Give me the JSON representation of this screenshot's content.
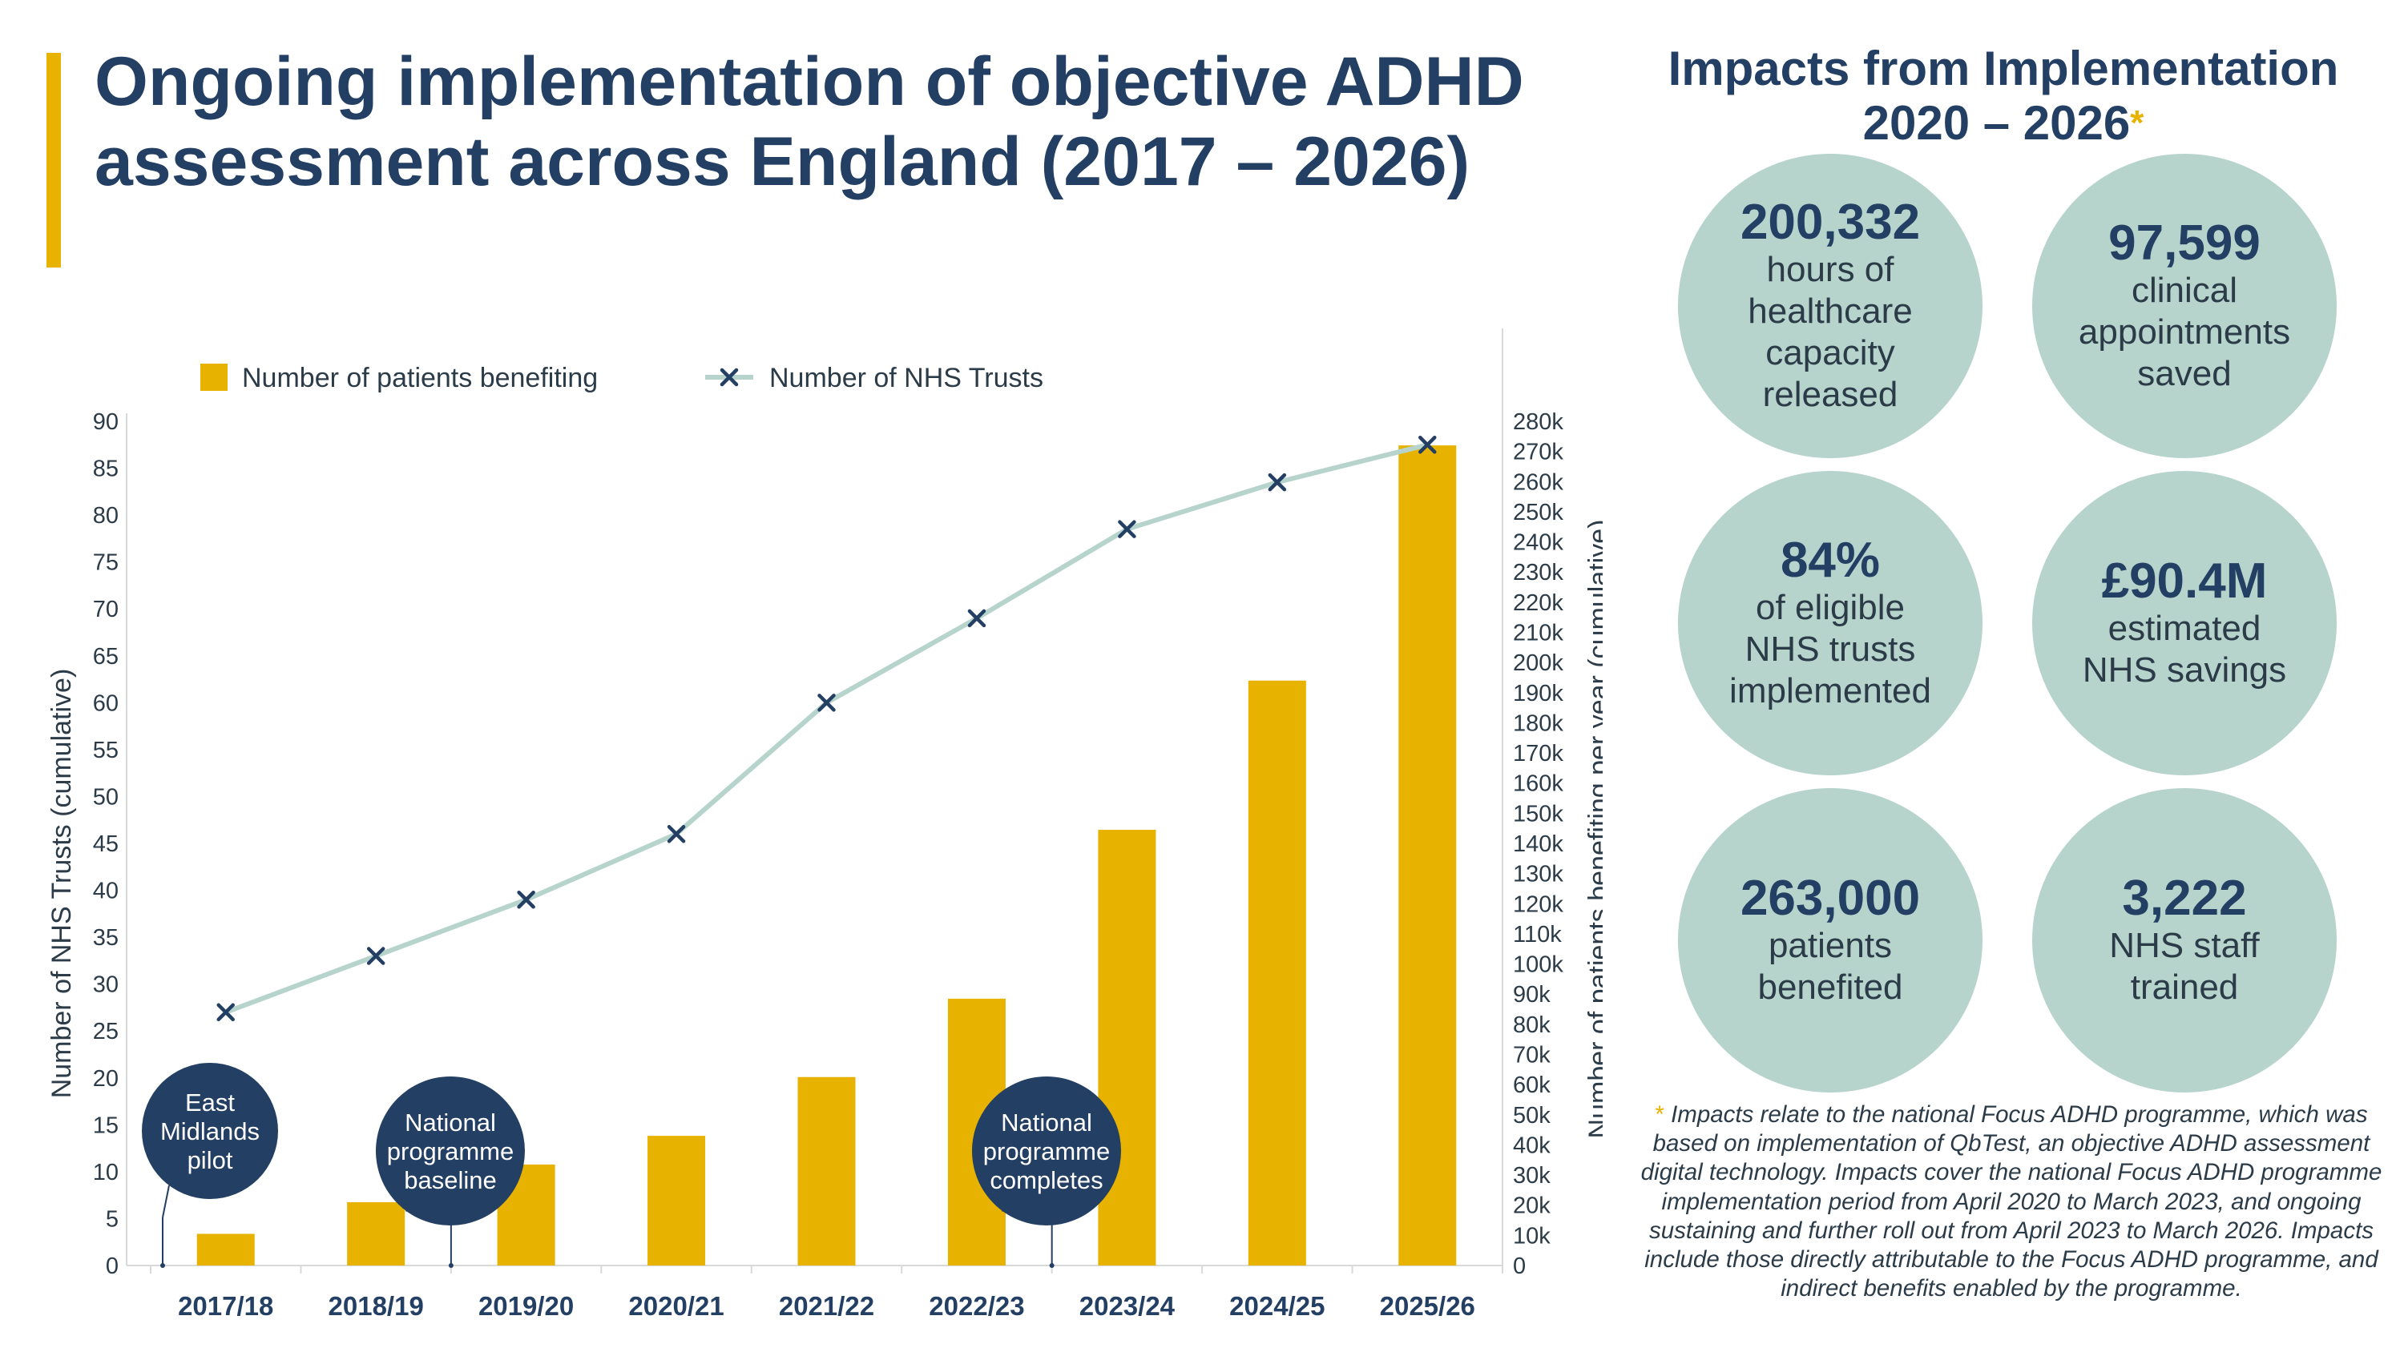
{
  "title": "Ongoing implementation of objective ADHD assessment across England (2017 – 2026)",
  "colors": {
    "navy": "#233f63",
    "gold": "#e8b200",
    "teal": "#b6d3cc",
    "line": "#b6d3cc"
  },
  "chart_data": {
    "type": "bar+line",
    "categories": [
      "2017/18",
      "2018/19",
      "2019/20",
      "2020/21",
      "2021/22",
      "2022/23",
      "2023/24",
      "2024/25",
      "2025/26"
    ],
    "series": [
      {
        "name": "Number of patients benefiting",
        "type": "bar",
        "axis": "right",
        "values": [
          10500,
          21000,
          33500,
          43000,
          62500,
          88500,
          144500,
          194000,
          272000
        ]
      },
      {
        "name": "Number of NHS Trusts",
        "type": "line",
        "axis": "left",
        "values": [
          27,
          33,
          39,
          46,
          60,
          69,
          78.5,
          83.5,
          87.5
        ]
      }
    ],
    "left_axis": {
      "label": "Number of NHS Trusts (cumulative)",
      "min": 0,
      "max": 90,
      "step": 5,
      "ticks": [
        "0",
        "5",
        "10",
        "15",
        "20",
        "25",
        "30",
        "35",
        "40",
        "45",
        "50",
        "55",
        "60",
        "65",
        "70",
        "75",
        "80",
        "85",
        "90"
      ]
    },
    "right_axis": {
      "label": "Number of patients benefiting per year (cumulative)",
      "min": 0,
      "max": 280000,
      "step": 10000,
      "ticks": [
        "0",
        "10k",
        "20k",
        "30k",
        "40k",
        "50k",
        "60k",
        "70k",
        "80k",
        "90k",
        "100k",
        "110k",
        "120k",
        "130k",
        "140k",
        "150k",
        "160k",
        "170k",
        "180k",
        "190k",
        "200k",
        "210k",
        "220k",
        "230k",
        "240k",
        "250k",
        "260k",
        "270k",
        "280k"
      ]
    },
    "legend": {
      "placement": "top-left"
    },
    "annotations": [
      {
        "text": "East\nMidlands\npilot",
        "category": "2017/18",
        "side": "left"
      },
      {
        "text": "National\nprogramme\nbaseline",
        "category": "2019/20",
        "side": "left"
      },
      {
        "text": "National\nprogramme\ncompletes",
        "category": "2023/24",
        "side": "left"
      }
    ]
  },
  "impacts": {
    "title_line1": "Impacts from Implementation",
    "title_line2": "2020 – 2026",
    "star": "*",
    "items": [
      {
        "big": "200,332",
        "text": "hours of\nhealthcare\ncapacity\nreleased"
      },
      {
        "big": "97,599",
        "text": "clinical\nappointments\nsaved"
      },
      {
        "big": "84%",
        "text": "of eligible\nNHS trusts\nimplemented"
      },
      {
        "big": "£90.4M",
        "text": "estimated\nNHS savings"
      },
      {
        "big": "263,000",
        "text": "patients\nbenefited"
      },
      {
        "big": "3,222",
        "text": "NHS staff\ntrained"
      }
    ],
    "footnote_star": "*",
    "footnote": "Impacts relate to the national Focus ADHD programme, which was based on implementation of QbTest, an objective ADHD assessment digital technology. Impacts cover the national Focus ADHD programme implementation period from April 2020 to March 2023, and ongoing sustaining and further roll out from April 2023 to March 2026. Impacts include those directly attributable to the Focus ADHD programme, and indirect benefits enabled by the programme."
  }
}
